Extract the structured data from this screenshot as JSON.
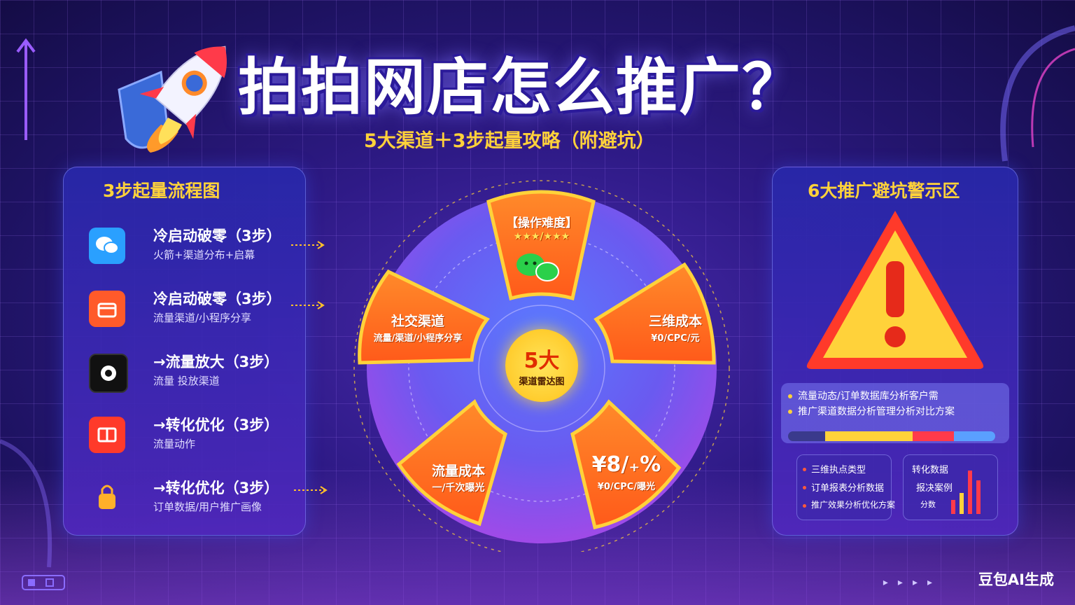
{
  "title": "拍拍网店怎么推广？",
  "subtitle": "5大渠道＋3步起量攻略（附避坑）",
  "left_panel": {
    "title": "3步起量流程图",
    "steps": [
      {
        "title": "冷启动破零（3步）",
        "sub": "火箭+渠道分布+启幕",
        "icon": "wechat-icon"
      },
      {
        "title": "冷启动破零（3步）",
        "sub": "流量渠道/小程序分享",
        "icon": "shop-icon"
      },
      {
        "title": "→流量放大（3步）",
        "sub": "流量 投放渠道",
        "icon": "camera-icon"
      },
      {
        "title": "→转化优化（3步）",
        "sub": "流量动作",
        "icon": "store-icon"
      },
      {
        "title": "→转化优化（3步）",
        "sub": "订单数据/用户推广画像",
        "icon": "lock-icon"
      }
    ]
  },
  "wheel": {
    "center_big": "5大",
    "center_small": "渠道雷达图",
    "segments": [
      {
        "title": "【操作难度】",
        "sub": "★★★/★★★"
      },
      {
        "title": "三维成本",
        "sub": "¥0/CPC/元"
      },
      {
        "title": "¥8/₊%",
        "sub": "¥0/CPC/曝光"
      },
      {
        "title": "流量成本",
        "sub": "一/千次曝光"
      },
      {
        "title": "社交渠道",
        "sub": "流量/渠道/小程序分享"
      }
    ]
  },
  "right_panel": {
    "title": "6大推广避坑警示区",
    "notes": [
      "流量动态/订单数据库分析客户需",
      "推广渠道数据分析管理分析对比方案"
    ],
    "progress": [
      {
        "color": "#3a3a8c",
        "share": 0.18
      },
      {
        "color": "#ffd23a",
        "share": 0.42
      },
      {
        "color": "#ff3a4a",
        "share": 0.2
      },
      {
        "color": "#5aa0ff",
        "share": 0.2
      }
    ],
    "card_left": [
      "三维执点类型",
      "订单报表分析数据",
      "推广效果分析优化方案"
    ],
    "card_right": [
      "转化数据",
      "报决案例",
      "分数"
    ]
  },
  "watermark": "豆包AI生成"
}
